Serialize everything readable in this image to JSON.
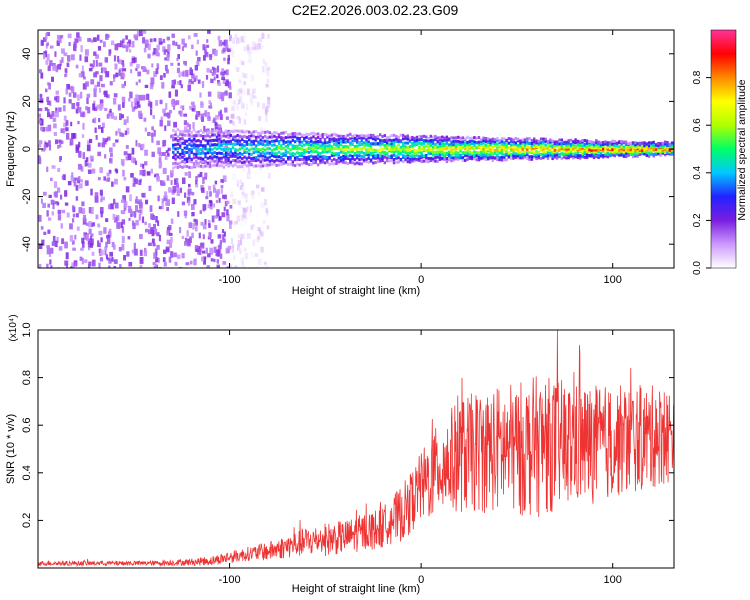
{
  "title": "C2E2.2026.003.02.23.G09",
  "chart_data": [
    {
      "type": "heatmap",
      "title": "C2E2.2026.003.02.23.G09",
      "xlabel": "Height of straight line (km)",
      "ylabel": "Frequency (Hz)",
      "xlim": [
        -200,
        132
      ],
      "ylim": [
        -50,
        50
      ],
      "xticks": [
        {
          "value": -100,
          "label": "-100"
        },
        {
          "value": 0,
          "label": "0"
        },
        {
          "value": 100,
          "label": "100"
        }
      ],
      "yticks": [
        {
          "value": 40,
          "label": "40"
        },
        {
          "value": 20,
          "label": "20"
        },
        {
          "value": 0,
          "label": "0"
        },
        {
          "value": -20,
          "label": "-20"
        },
        {
          "value": -40,
          "label": "-40"
        }
      ],
      "colorbar": {
        "label": "Normalized spectral amplitude",
        "range": [
          0,
          1
        ],
        "ticks": [
          {
            "value": 0.0,
            "label": "0.0"
          },
          {
            "value": 0.2,
            "label": "0.2"
          },
          {
            "value": 0.4,
            "label": "0.4"
          },
          {
            "value": 0.6,
            "label": "0.6"
          },
          {
            "value": 0.8,
            "label": "0.8"
          }
        ],
        "colors": [
          "#ffffff",
          "#cc99ff",
          "#7a1fe0",
          "#2222ff",
          "#00c8ff",
          "#00ff66",
          "#b0ff00",
          "#ffff00",
          "#ff8800",
          "#ff0000",
          "#ff3399"
        ]
      },
      "regions": [
        {
          "description": "scattered noise",
          "x": [
            -200,
            -100
          ],
          "y": [
            -50,
            50
          ],
          "amplitude": [
            0.1,
            0.2
          ]
        },
        {
          "description": "sparse noise",
          "x": [
            -100,
            -80
          ],
          "y": [
            -50,
            50
          ],
          "amplitude": [
            0.0,
            0.1
          ]
        },
        {
          "description": "signal ridge",
          "x": [
            -130,
            132
          ],
          "y": [
            -3,
            3
          ],
          "center_freq": 0,
          "amplitude_start": 0.35,
          "amplitude_end": 0.9
        }
      ]
    },
    {
      "type": "line",
      "xlabel": "Height of straight line (km)",
      "ylabel": "SNR (10 * v/v)",
      "scale_label": "(x10⁴)",
      "xlim": [
        -200,
        132
      ],
      "ylim": [
        0,
        1.0
      ],
      "xticks": [
        {
          "value": -100,
          "label": "-100"
        },
        {
          "value": 0,
          "label": "0"
        },
        {
          "value": 100,
          "label": "100"
        }
      ],
      "yticks": [
        {
          "value": 0.2,
          "label": "0.2"
        },
        {
          "value": 0.4,
          "label": "0.4"
        },
        {
          "value": 0.6,
          "label": "0.6"
        },
        {
          "value": 0.8,
          "label": "0.8"
        },
        {
          "value": 1.0,
          "label": "1.0"
        }
      ],
      "series": [
        {
          "name": "SNR",
          "color": "#ee3333",
          "x": [
            -200,
            -180,
            -160,
            -140,
            -120,
            -110,
            -100,
            -90,
            -80,
            -70,
            -60,
            -50,
            -40,
            -30,
            -20,
            -15,
            -10,
            -5,
            0,
            5,
            10,
            15,
            20,
            25,
            30,
            40,
            50,
            60,
            70,
            80,
            90,
            100,
            110,
            120,
            132
          ],
          "y": [
            0.02,
            0.02,
            0.02,
            0.02,
            0.025,
            0.03,
            0.045,
            0.06,
            0.07,
            0.09,
            0.11,
            0.12,
            0.13,
            0.15,
            0.17,
            0.2,
            0.23,
            0.28,
            0.34,
            0.38,
            0.42,
            0.45,
            0.47,
            0.48,
            0.49,
            0.5,
            0.5,
            0.51,
            0.52,
            0.52,
            0.52,
            0.53,
            0.54,
            0.55,
            0.56
          ],
          "noise_amplitude": [
            0.01,
            0.01,
            0.01,
            0.01,
            0.015,
            0.02,
            0.025,
            0.03,
            0.04,
            0.05,
            0.06,
            0.07,
            0.07,
            0.08,
            0.09,
            0.1,
            0.12,
            0.13,
            0.15,
            0.18,
            0.2,
            0.22,
            0.24,
            0.25,
            0.26,
            0.27,
            0.28,
            0.3,
            0.28,
            0.26,
            0.25,
            0.24,
            0.23,
            0.22,
            0.2
          ]
        }
      ]
    }
  ]
}
